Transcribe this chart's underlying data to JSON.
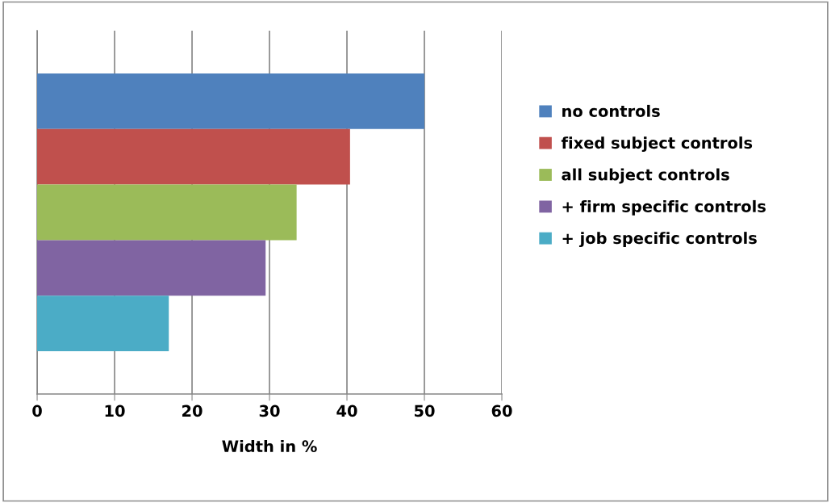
{
  "chart_data": {
    "type": "bar",
    "orientation": "horizontal",
    "xlabel": "Width in %",
    "categories": [
      null
    ],
    "series": [
      {
        "name": "no controls",
        "color": "#4f81bd",
        "values": [
          50
        ]
      },
      {
        "name": "fixed subject controls",
        "color": "#c0504d",
        "values": [
          40.4
        ]
      },
      {
        "name": "all subject controls",
        "color": "#9bbb59",
        "values": [
          33.5
        ]
      },
      {
        "name": "+ firm specific controls",
        "color": "#8064a2",
        "values": [
          29.5
        ]
      },
      {
        "name": "+ job specific controls",
        "color": "#4bacc6",
        "values": [
          17
        ]
      }
    ],
    "xlim": [
      0,
      60
    ],
    "xticks": [
      0,
      10,
      20,
      30,
      40,
      50,
      60
    ],
    "grid": "x",
    "legend": "right",
    "tick_labels": "x"
  }
}
